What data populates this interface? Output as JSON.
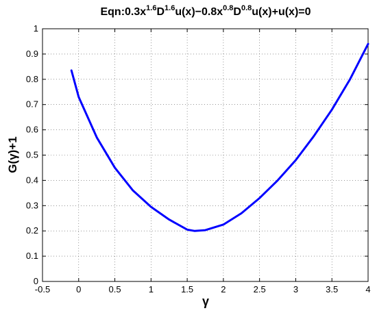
{
  "chart_data": {
    "type": "line",
    "title": [
      {
        "text": "Eqn:0.3x"
      },
      {
        "sup": "1.6"
      },
      {
        "text": "D"
      },
      {
        "sup": "1.6"
      },
      {
        "text": "u(x)−0.8x"
      },
      {
        "sup": "0.8"
      },
      {
        "text": "D"
      },
      {
        "sup": "0.8"
      },
      {
        "text": "u(x)+u(x)=0"
      }
    ],
    "xlabel": "γ",
    "ylabel": "G(γ)+1",
    "x": [
      -0.1,
      0,
      0.25,
      0.5,
      0.75,
      1,
      1.25,
      1.5,
      1.6,
      1.75,
      2,
      2.25,
      2.5,
      2.75,
      3,
      3.25,
      3.5,
      3.75,
      4
    ],
    "values": [
      0.835,
      0.73,
      0.57,
      0.45,
      0.36,
      0.295,
      0.245,
      0.205,
      0.2,
      0.203,
      0.225,
      0.27,
      0.33,
      0.4,
      0.48,
      0.575,
      0.68,
      0.8,
      0.94
    ],
    "color": "#0000ff",
    "xlim": [
      -0.5,
      4
    ],
    "xticks": [
      -0.5,
      0,
      0.5,
      1,
      1.5,
      2,
      2.5,
      3,
      3.5,
      4
    ],
    "ylim": [
      0,
      1
    ],
    "yticks": [
      0,
      0.1,
      0.2,
      0.3,
      0.4,
      0.5,
      0.6,
      0.7,
      0.8,
      0.9,
      1
    ],
    "grid": true
  }
}
